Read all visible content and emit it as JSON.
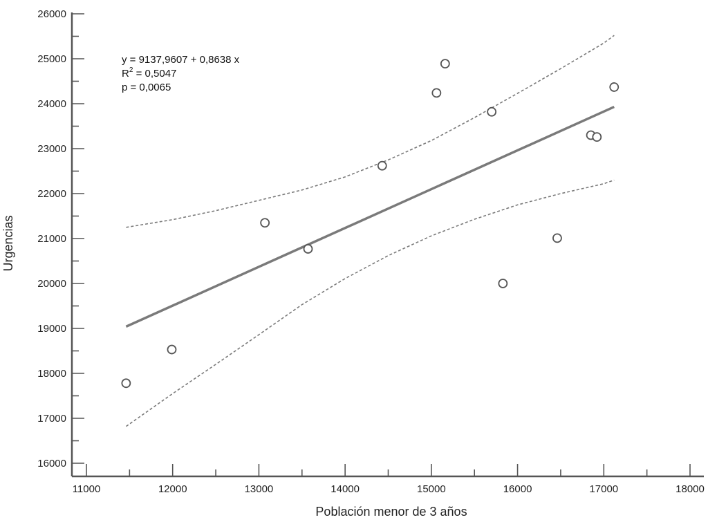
{
  "chart_data": {
    "type": "scatter",
    "xlabel": "Población menor de 3 años",
    "ylabel": "Urgencias",
    "xlim": [
      11000,
      18000
    ],
    "ylim": [
      16000,
      26000
    ],
    "x_ticks": [
      "11000",
      "12000",
      "13000",
      "14000",
      "15000",
      "16000",
      "17000",
      "18000"
    ],
    "y_ticks": [
      "16000",
      "17000",
      "18000",
      "19000",
      "20000",
      "21000",
      "22000",
      "23000",
      "24000",
      "25000",
      "26000"
    ],
    "points": [
      {
        "x": 11460,
        "y": 17780
      },
      {
        "x": 11990,
        "y": 18530
      },
      {
        "x": 13070,
        "y": 21350
      },
      {
        "x": 13570,
        "y": 20770
      },
      {
        "x": 14430,
        "y": 22620
      },
      {
        "x": 15060,
        "y": 24240
      },
      {
        "x": 15160,
        "y": 24890
      },
      {
        "x": 15700,
        "y": 23820
      },
      {
        "x": 15830,
        "y": 20000
      },
      {
        "x": 16460,
        "y": 21010
      },
      {
        "x": 16850,
        "y": 23300
      },
      {
        "x": 16920,
        "y": 23260
      },
      {
        "x": 17120,
        "y": 24370
      }
    ],
    "regression_line": {
      "x": [
        11460,
        17120
      ],
      "y": [
        19040,
        23930
      ]
    },
    "upper_band": {
      "x": [
        11460,
        12000,
        12500,
        13000,
        13500,
        14000,
        14500,
        15000,
        15500,
        16000,
        16500,
        17000,
        17120
      ],
      "y": [
        21250,
        21420,
        21620,
        21850,
        22080,
        22370,
        22750,
        23180,
        23690,
        24230,
        24780,
        25350,
        25520
      ]
    },
    "lower_band": {
      "x": [
        11460,
        12000,
        12500,
        13000,
        13500,
        14000,
        14500,
        15000,
        15500,
        16000,
        16500,
        17000,
        17120
      ],
      "y": [
        16820,
        17550,
        18200,
        18860,
        19530,
        20110,
        20620,
        21060,
        21430,
        21750,
        22000,
        22220,
        22300
      ]
    },
    "annotation": {
      "equation": "y = 9137,9607 + 0,8638 x",
      "r2_label": "R",
      "r2_sup": "2",
      "r2_value": " = 0,5047",
      "p_value": "p = 0,0065"
    },
    "colors": {
      "axis": "#555555",
      "regression": "#7a7a7a",
      "band": "#7a7a7a",
      "marker": "#555555"
    },
    "grid": false
  }
}
